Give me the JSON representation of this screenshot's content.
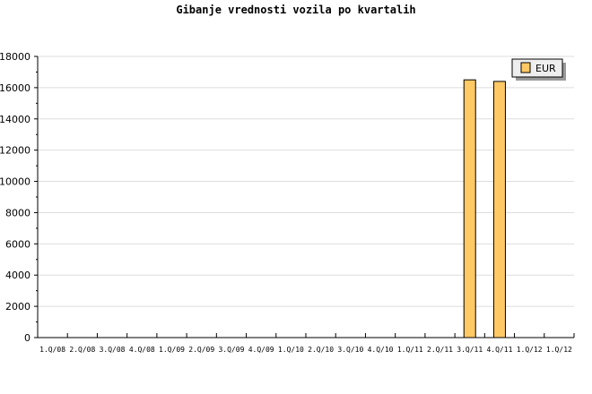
{
  "chart_data": {
    "type": "bar",
    "title": "Gibanje vrednosti vozila po kvartalih",
    "categories": [
      "1.Q/08",
      "2.Q/08",
      "3.Q/08",
      "4.Q/08",
      "1.Q/09",
      "2.Q/09",
      "3.Q/09",
      "4.Q/09",
      "1.Q/10",
      "2.Q/10",
      "3.Q/10",
      "4.Q/10",
      "1.Q/11",
      "2.Q/11",
      "3.Q/11",
      "4.Q/11",
      "1.Q/12",
      "1.Q/12"
    ],
    "series": [
      {
        "name": "EUR",
        "values": [
          0,
          0,
          0,
          0,
          0,
          0,
          0,
          0,
          0,
          0,
          0,
          0,
          0,
          0,
          16500,
          16400,
          0,
          0
        ],
        "color": "#ffc966"
      }
    ],
    "ylim": [
      0,
      18000
    ],
    "yticks": [
      0,
      2000,
      4000,
      6000,
      8000,
      10000,
      12000,
      14000,
      16000,
      18000
    ],
    "grid": true,
    "legend": "top-right"
  }
}
